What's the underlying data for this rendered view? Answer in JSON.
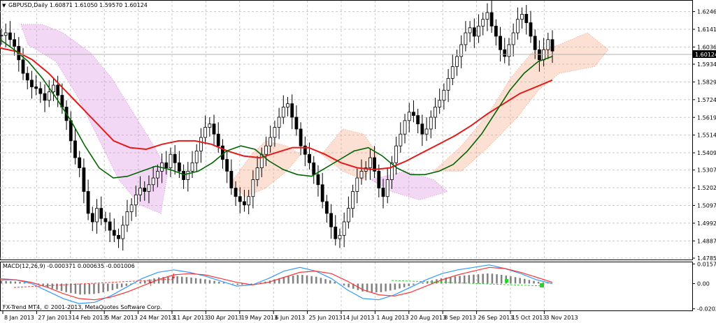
{
  "main_chart": {
    "header": "GBPUSD,Daily  1.60871 1.61050 1.59570 1.60124",
    "current_price_label": "1.60124",
    "price_axis": {
      "ticks": [
        "1.62460",
        "1.61410",
        "1.60360",
        "1.59340",
        "1.58290",
        "1.57240",
        "1.56190",
        "1.55140",
        "1.54090",
        "1.53070",
        "1.52020",
        "1.50970",
        "1.49920",
        "1.48870",
        "1.47850"
      ],
      "range": [
        1.4785,
        1.6298
      ]
    },
    "colors": {
      "bg": "#ffffff",
      "grid": "#c0c0c0",
      "candle": "#000000",
      "ma_fast": "#006400",
      "ma_slow": "#e41a1a",
      "cloud_bull": "#f4a582",
      "cloud_bear": "#da8ee0"
    }
  },
  "macd_panel": {
    "label": "MACD(12,26,9) -0.000371 0.000635 -0.001006",
    "ticks": [
      "0.015758",
      "0.00",
      "-0.020271"
    ],
    "range": [
      -0.021,
      0.0165
    ],
    "colors": {
      "histogram": "#808080",
      "macd_line": "#3399ff",
      "signal_line": "#ff3333",
      "arrow_up": "#33cc33",
      "arrow_down": "#ff0000"
    }
  },
  "copyright": "FX-Trend MT4, © 2001-2013, MetaQuotes Software Corp.",
  "time_axis": [
    "8 Jan 2013",
    "27 Jan 2013",
    "14 Feb 2013",
    "5 Mar 2013",
    "24 Mar 2013",
    "11 Apr 2013",
    "30 Apr 2013",
    "19 May 2013",
    "6 Jun 2013",
    "25 Jun 2013",
    "14 Jul 2013",
    "1 Aug 2013",
    "20 Aug 2013",
    "8 Sep 2013",
    "26 Sep 2013",
    "15 Oct 2013",
    "3 Nov 2013"
  ],
  "chart_data": {
    "type": "candlestick",
    "title": "GBPUSD,Daily",
    "ohlc_last": {
      "open": 1.60871,
      "high": 1.6105,
      "low": 1.5957,
      "close": 1.60124
    },
    "closes": [
      1.6105,
      1.612,
      1.608,
      1.604,
      1.596,
      1.588,
      1.584,
      1.58,
      1.579,
      1.576,
      1.572,
      1.577,
      1.581,
      1.575,
      1.568,
      1.56,
      1.548,
      1.538,
      1.532,
      1.518,
      1.505,
      1.5,
      1.508,
      1.502,
      1.5,
      1.495,
      1.492,
      1.49,
      1.498,
      1.506,
      1.51,
      1.516,
      1.52,
      1.518,
      1.522,
      1.526,
      1.53,
      1.535,
      1.532,
      1.54,
      1.535,
      1.53,
      1.525,
      1.53,
      1.535,
      1.542,
      1.55,
      1.556,
      1.558,
      1.552,
      1.545,
      1.537,
      1.53,
      1.52,
      1.515,
      1.512,
      1.51,
      1.515,
      1.525,
      1.532,
      1.54,
      1.545,
      1.55,
      1.556,
      1.562,
      1.568,
      1.57,
      1.562,
      1.555,
      1.545,
      1.54,
      1.535,
      1.528,
      1.522,
      1.512,
      1.505,
      1.497,
      1.49,
      1.492,
      1.5,
      1.508,
      1.518,
      1.526,
      1.53,
      1.532,
      1.538,
      1.53,
      1.52,
      1.515,
      1.525,
      1.535,
      1.545,
      1.552,
      1.56,
      1.565,
      1.563,
      1.558,
      1.552,
      1.555,
      1.562,
      1.568,
      1.572,
      1.578,
      1.585,
      1.592,
      1.598,
      1.605,
      1.612,
      1.615,
      1.61,
      1.616,
      1.62,
      1.624,
      1.616,
      1.61,
      1.602,
      1.598,
      1.605,
      1.612,
      1.62,
      1.623,
      1.618,
      1.61,
      1.602,
      1.596,
      1.602,
      1.608,
      1.6012
    ],
    "ma_fast": [
      1.608,
      1.602,
      1.595,
      1.585,
      1.573,
      1.56,
      1.545,
      1.532,
      1.526,
      1.527,
      1.53,
      1.533,
      1.531,
      1.528,
      1.53,
      1.535,
      1.542,
      1.545,
      1.543,
      1.536,
      1.531,
      1.528,
      1.527,
      1.532,
      1.537,
      1.542,
      1.544,
      1.539,
      1.532,
      1.528,
      1.528,
      1.53,
      1.534,
      1.542,
      1.552,
      1.565,
      1.578,
      1.588,
      1.595,
      1.598
    ],
    "ma_slow": [
      1.603,
      1.601,
      1.596,
      1.588,
      1.578,
      1.568,
      1.558,
      1.548,
      1.544,
      1.543,
      1.546,
      1.548,
      1.548,
      1.546,
      1.542,
      1.539,
      1.538,
      1.541,
      1.544,
      1.544,
      1.54,
      1.535,
      1.532,
      1.531,
      1.532,
      1.536,
      1.541,
      1.546,
      1.551,
      1.557,
      1.564,
      1.57,
      1.576,
      1.58,
      1.584
    ],
    "macd": [
      0.004,
      0.003,
      0.0,
      -0.006,
      -0.012,
      -0.016,
      -0.015,
      -0.01,
      -0.003,
      0.004,
      0.009,
      0.011,
      0.009,
      0.006,
      0.002,
      -0.002,
      -0.001,
      0.004,
      0.01,
      0.013,
      0.01,
      0.004,
      -0.005,
      -0.012,
      -0.013,
      -0.009,
      -0.003,
      0.003,
      0.008,
      0.011,
      0.013,
      0.015,
      0.012,
      0.008,
      0.003,
      0.0
    ],
    "macd_signal": [
      0.003,
      0.003,
      0.001,
      -0.003,
      -0.008,
      -0.012,
      -0.013,
      -0.011,
      -0.007,
      -0.002,
      0.003,
      0.007,
      0.008,
      0.007,
      0.004,
      0.001,
      -0.001,
      0.001,
      0.005,
      0.009,
      0.01,
      0.008,
      0.002,
      -0.005,
      -0.009,
      -0.01,
      -0.007,
      -0.002,
      0.003,
      0.007,
      0.01,
      0.013,
      0.012,
      0.009,
      0.005,
      0.001
    ]
  }
}
